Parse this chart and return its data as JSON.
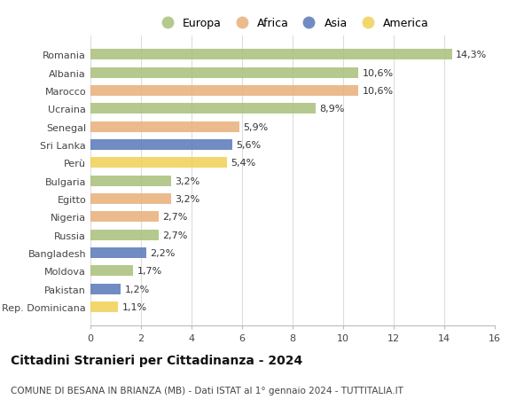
{
  "countries": [
    "Romania",
    "Albania",
    "Marocco",
    "Ucraina",
    "Senegal",
    "Sri Lanka",
    "Perù",
    "Bulgaria",
    "Egitto",
    "Nigeria",
    "Russia",
    "Bangladesh",
    "Moldova",
    "Pakistan",
    "Rep. Dominicana"
  ],
  "values": [
    14.3,
    10.6,
    10.6,
    8.9,
    5.9,
    5.6,
    5.4,
    3.2,
    3.2,
    2.7,
    2.7,
    2.2,
    1.7,
    1.2,
    1.1
  ],
  "labels": [
    "14,3%",
    "10,6%",
    "10,6%",
    "8,9%",
    "5,9%",
    "5,6%",
    "5,4%",
    "3,2%",
    "3,2%",
    "2,7%",
    "2,7%",
    "2,2%",
    "1,7%",
    "1,2%",
    "1,1%"
  ],
  "continents": [
    "Europa",
    "Europa",
    "Africa",
    "Europa",
    "Africa",
    "Asia",
    "America",
    "Europa",
    "Africa",
    "Africa",
    "Europa",
    "Asia",
    "Europa",
    "Asia",
    "America"
  ],
  "colors": {
    "Europa": "#a8c07a",
    "Africa": "#e8b07a",
    "Asia": "#5878b8",
    "America": "#f0d055"
  },
  "legend_order": [
    "Europa",
    "Africa",
    "Asia",
    "America"
  ],
  "title": "Cittadini Stranieri per Cittadinanza - 2024",
  "subtitle": "COMUNE DI BESANA IN BRIANZA (MB) - Dati ISTAT al 1° gennaio 2024 - TUTTITALIA.IT",
  "xlim": [
    0,
    16
  ],
  "xticks": [
    0,
    2,
    4,
    6,
    8,
    10,
    12,
    14,
    16
  ],
  "background_color": "#ffffff",
  "grid_color": "#dddddd",
  "bar_height": 0.6,
  "title_fontsize": 10,
  "subtitle_fontsize": 7.5,
  "tick_fontsize": 8,
  "label_fontsize": 8,
  "legend_fontsize": 9
}
